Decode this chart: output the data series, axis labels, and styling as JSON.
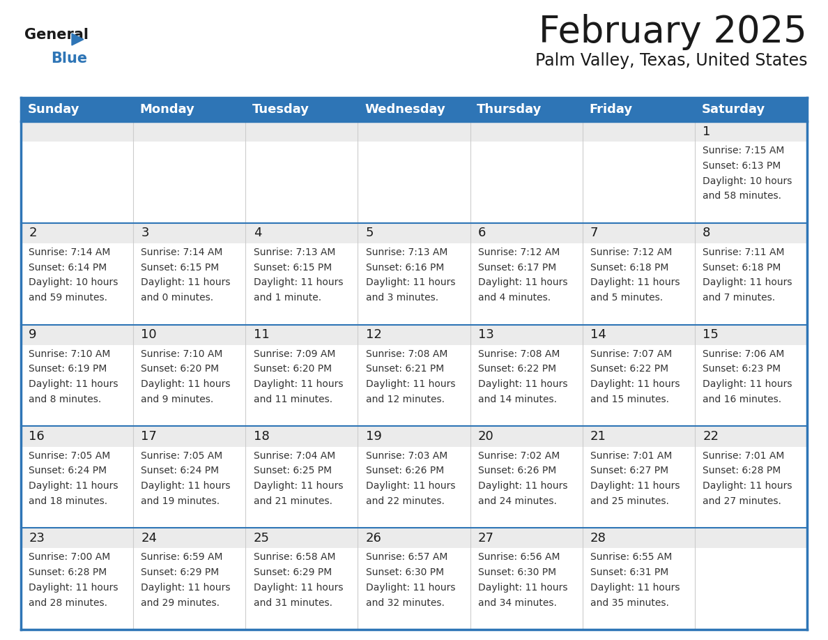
{
  "title": "February 2025",
  "subtitle": "Palm Valley, Texas, United States",
  "header_color": "#2E75B6",
  "header_text_color": "#FFFFFF",
  "border_color": "#2E75B6",
  "day_num_bg": "#EBEBEB",
  "cell_bg": "#FFFFFF",
  "cell_text_color": "#333333",
  "day_num_color": "#1a1a1a",
  "title_color": "#1a1a1a",
  "subtitle_color": "#1a1a1a",
  "days_of_week": [
    "Sunday",
    "Monday",
    "Tuesday",
    "Wednesday",
    "Thursday",
    "Friday",
    "Saturday"
  ],
  "calendar_data": [
    [
      null,
      null,
      null,
      null,
      null,
      null,
      {
        "day": 1,
        "sunrise": "7:15 AM",
        "sunset": "6:13 PM",
        "daylight_line1": "Daylight: 10 hours",
        "daylight_line2": "and 58 minutes."
      }
    ],
    [
      {
        "day": 2,
        "sunrise": "7:14 AM",
        "sunset": "6:14 PM",
        "daylight_line1": "Daylight: 10 hours",
        "daylight_line2": "and 59 minutes."
      },
      {
        "day": 3,
        "sunrise": "7:14 AM",
        "sunset": "6:15 PM",
        "daylight_line1": "Daylight: 11 hours",
        "daylight_line2": "and 0 minutes."
      },
      {
        "day": 4,
        "sunrise": "7:13 AM",
        "sunset": "6:15 PM",
        "daylight_line1": "Daylight: 11 hours",
        "daylight_line2": "and 1 minute."
      },
      {
        "day": 5,
        "sunrise": "7:13 AM",
        "sunset": "6:16 PM",
        "daylight_line1": "Daylight: 11 hours",
        "daylight_line2": "and 3 minutes."
      },
      {
        "day": 6,
        "sunrise": "7:12 AM",
        "sunset": "6:17 PM",
        "daylight_line1": "Daylight: 11 hours",
        "daylight_line2": "and 4 minutes."
      },
      {
        "day": 7,
        "sunrise": "7:12 AM",
        "sunset": "6:18 PM",
        "daylight_line1": "Daylight: 11 hours",
        "daylight_line2": "and 5 minutes."
      },
      {
        "day": 8,
        "sunrise": "7:11 AM",
        "sunset": "6:18 PM",
        "daylight_line1": "Daylight: 11 hours",
        "daylight_line2": "and 7 minutes."
      }
    ],
    [
      {
        "day": 9,
        "sunrise": "7:10 AM",
        "sunset": "6:19 PM",
        "daylight_line1": "Daylight: 11 hours",
        "daylight_line2": "and 8 minutes."
      },
      {
        "day": 10,
        "sunrise": "7:10 AM",
        "sunset": "6:20 PM",
        "daylight_line1": "Daylight: 11 hours",
        "daylight_line2": "and 9 minutes."
      },
      {
        "day": 11,
        "sunrise": "7:09 AM",
        "sunset": "6:20 PM",
        "daylight_line1": "Daylight: 11 hours",
        "daylight_line2": "and 11 minutes."
      },
      {
        "day": 12,
        "sunrise": "7:08 AM",
        "sunset": "6:21 PM",
        "daylight_line1": "Daylight: 11 hours",
        "daylight_line2": "and 12 minutes."
      },
      {
        "day": 13,
        "sunrise": "7:08 AM",
        "sunset": "6:22 PM",
        "daylight_line1": "Daylight: 11 hours",
        "daylight_line2": "and 14 minutes."
      },
      {
        "day": 14,
        "sunrise": "7:07 AM",
        "sunset": "6:22 PM",
        "daylight_line1": "Daylight: 11 hours",
        "daylight_line2": "and 15 minutes."
      },
      {
        "day": 15,
        "sunrise": "7:06 AM",
        "sunset": "6:23 PM",
        "daylight_line1": "Daylight: 11 hours",
        "daylight_line2": "and 16 minutes."
      }
    ],
    [
      {
        "day": 16,
        "sunrise": "7:05 AM",
        "sunset": "6:24 PM",
        "daylight_line1": "Daylight: 11 hours",
        "daylight_line2": "and 18 minutes."
      },
      {
        "day": 17,
        "sunrise": "7:05 AM",
        "sunset": "6:24 PM",
        "daylight_line1": "Daylight: 11 hours",
        "daylight_line2": "and 19 minutes."
      },
      {
        "day": 18,
        "sunrise": "7:04 AM",
        "sunset": "6:25 PM",
        "daylight_line1": "Daylight: 11 hours",
        "daylight_line2": "and 21 minutes."
      },
      {
        "day": 19,
        "sunrise": "7:03 AM",
        "sunset": "6:26 PM",
        "daylight_line1": "Daylight: 11 hours",
        "daylight_line2": "and 22 minutes."
      },
      {
        "day": 20,
        "sunrise": "7:02 AM",
        "sunset": "6:26 PM",
        "daylight_line1": "Daylight: 11 hours",
        "daylight_line2": "and 24 minutes."
      },
      {
        "day": 21,
        "sunrise": "7:01 AM",
        "sunset": "6:27 PM",
        "daylight_line1": "Daylight: 11 hours",
        "daylight_line2": "and 25 minutes."
      },
      {
        "day": 22,
        "sunrise": "7:01 AM",
        "sunset": "6:28 PM",
        "daylight_line1": "Daylight: 11 hours",
        "daylight_line2": "and 27 minutes."
      }
    ],
    [
      {
        "day": 23,
        "sunrise": "7:00 AM",
        "sunset": "6:28 PM",
        "daylight_line1": "Daylight: 11 hours",
        "daylight_line2": "and 28 minutes."
      },
      {
        "day": 24,
        "sunrise": "6:59 AM",
        "sunset": "6:29 PM",
        "daylight_line1": "Daylight: 11 hours",
        "daylight_line2": "and 29 minutes."
      },
      {
        "day": 25,
        "sunrise": "6:58 AM",
        "sunset": "6:29 PM",
        "daylight_line1": "Daylight: 11 hours",
        "daylight_line2": "and 31 minutes."
      },
      {
        "day": 26,
        "sunrise": "6:57 AM",
        "sunset": "6:30 PM",
        "daylight_line1": "Daylight: 11 hours",
        "daylight_line2": "and 32 minutes."
      },
      {
        "day": 27,
        "sunrise": "6:56 AM",
        "sunset": "6:30 PM",
        "daylight_line1": "Daylight: 11 hours",
        "daylight_line2": "and 34 minutes."
      },
      {
        "day": 28,
        "sunrise": "6:55 AM",
        "sunset": "6:31 PM",
        "daylight_line1": "Daylight: 11 hours",
        "daylight_line2": "and 35 minutes."
      },
      null
    ]
  ]
}
